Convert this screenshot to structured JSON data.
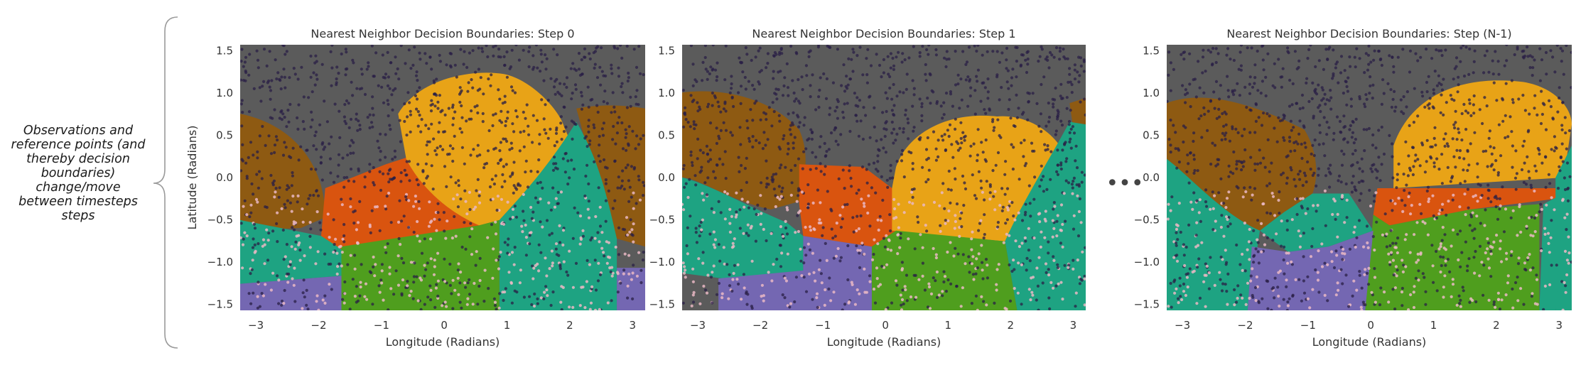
{
  "annotation": {
    "lines": [
      "Observations and",
      "reference points (and",
      "thereby decision",
      "boundaries)",
      "change/move",
      "between timesteps",
      "steps"
    ]
  },
  "ellipsis": "•••",
  "axes": {
    "xlabel": "Longitude (Radians)",
    "ylabel": "Latitude (Radians)",
    "xticks": [
      "−3",
      "−2",
      "−1",
      "0",
      "1",
      "2",
      "3"
    ],
    "yticks": [
      "1.5",
      "1.0",
      "0.5",
      "0.0",
      "−0.5",
      "−1.0",
      "−1.5"
    ]
  },
  "colors": {
    "gray": "#5b5b5b",
    "brown": "#8e5a12",
    "orange": "#d9540f",
    "yellow": "#e8a317",
    "green": "#4f9e1e",
    "teal": "#1ea382",
    "purple": "#7467b2",
    "dark_dot": "#2a1f45",
    "light_dot": "#eab8c4"
  },
  "panels": [
    {
      "title": "Nearest Neighbor Decision Boundaries: Step 0"
    },
    {
      "title": "Nearest Neighbor Decision Boundaries: Step 1"
    },
    {
      "title": "Nearest Neighbor Decision Boundaries: Step (N-1)"
    }
  ]
}
